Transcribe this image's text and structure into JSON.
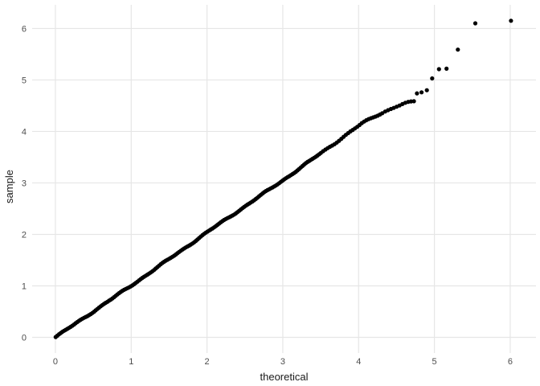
{
  "chart_data": {
    "type": "scatter",
    "subtype": "qq-plot",
    "title": "",
    "xlabel": "theoretical",
    "ylabel": "sample",
    "x_ticks": [
      0,
      1,
      2,
      3,
      4,
      5,
      6
    ],
    "y_ticks": [
      0,
      1,
      2,
      3,
      4,
      5,
      6
    ],
    "xlim": [
      -0.307,
      6.34
    ],
    "ylim": [
      -0.305,
      6.46
    ],
    "grid": "major-only",
    "legend": "none",
    "point_color": "#000000",
    "point_radius": 2.6,
    "grid_color": "#e6e6e6",
    "background_color": "#ffffff",
    "tick_label_color": "#4d4d4d",
    "axis_title_color": "#1a1a1a",
    "band": {
      "description": "dense overlapping run of sample-vs-theoretical quantile points hugging the y=x line from (0,0) to (4.73,4.58)",
      "t_min": 0.004,
      "t_max": 4.73,
      "steps": [
        [
          3.5,
          0.022
        ],
        [
          4.3,
          0.03
        ],
        [
          99,
          0.038
        ]
      ],
      "deviation": [
        [
          0,
          0
        ],
        [
          1,
          0.005
        ],
        [
          1.5,
          0.02
        ],
        [
          2,
          0.04
        ],
        [
          2.5,
          0.045
        ],
        [
          3,
          0.05
        ],
        [
          3.6,
          0.08
        ],
        [
          3.9,
          0.105
        ],
        [
          4.05,
          0.11
        ],
        [
          4.2,
          0.08
        ],
        [
          4.35,
          0.04
        ],
        [
          4.5,
          -0.01
        ],
        [
          4.6,
          -0.06
        ],
        [
          4.73,
          -0.15
        ]
      ],
      "jitter": {
        "a1": 0.01,
        "f1": 9.7,
        "a2": 0.008,
        "f2": 23.3
      }
    },
    "outlier_points": [
      [
        4.77,
        4.74
      ],
      [
        4.83,
        4.76
      ],
      [
        4.9,
        4.8
      ],
      [
        4.97,
        5.03
      ],
      [
        5.06,
        5.21
      ],
      [
        5.16,
        5.22
      ],
      [
        5.31,
        5.59
      ],
      [
        5.54,
        6.1
      ],
      [
        6.01,
        6.15
      ]
    ]
  }
}
